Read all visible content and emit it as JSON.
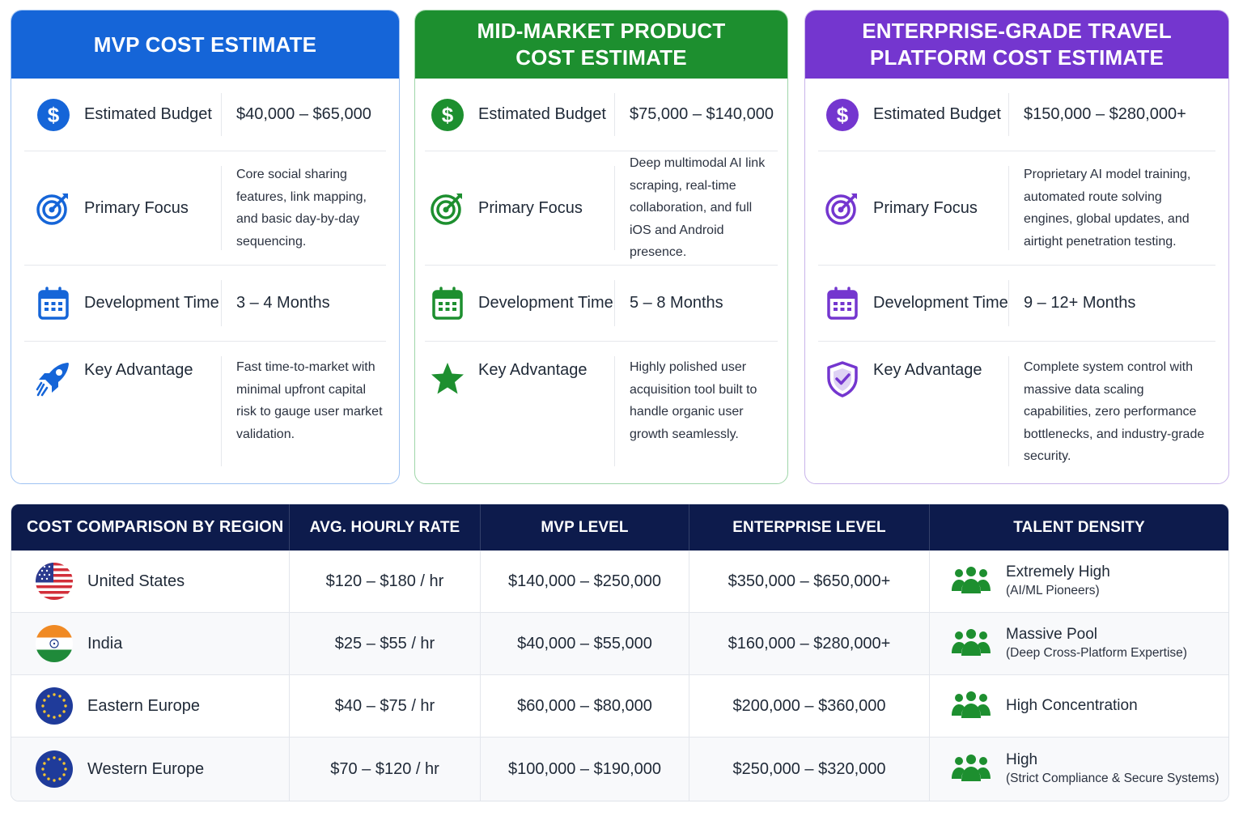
{
  "cards": [
    {
      "title": "MVP COST ESTIMATE",
      "accent": "#1565d8",
      "rows": {
        "budget": {
          "label": "Estimated Budget",
          "value": "$40,000 – $65,000"
        },
        "focus": {
          "label": "Primary Focus",
          "value": "Core social sharing features, link mapping, and basic day-by-day sequencing."
        },
        "time": {
          "label": "Development Time",
          "value": "3 – 4 Months"
        },
        "advantage": {
          "label": "Key Advantage",
          "value": "Fast time-to-market with minimal upfront capital risk to gauge user market validation."
        }
      },
      "icons": [
        "dollar-icon",
        "target-icon",
        "calendar-icon",
        "rocket-icon"
      ]
    },
    {
      "title": "MID-MARKET PRODUCT\nCOST ESTIMATE",
      "accent": "#1d8f2f",
      "rows": {
        "budget": {
          "label": "Estimated Budget",
          "value": "$75,000 – $140,000"
        },
        "focus": {
          "label": "Primary Focus",
          "value": "Deep multimodal AI link scraping, real-time collaboration, and full iOS and Android presence."
        },
        "time": {
          "label": "Development Time",
          "value": "5 – 8 Months"
        },
        "advantage": {
          "label": "Key Advantage",
          "value": "Highly polished user acquisition tool built to handle organic user growth seamlessly."
        }
      },
      "icons": [
        "dollar-icon",
        "target-icon",
        "calendar-icon",
        "star-icon"
      ]
    },
    {
      "title": "ENTERPRISE-GRADE TRAVEL\nPLATFORM COST ESTIMATE",
      "accent": "#7436cf",
      "rows": {
        "budget": {
          "label": "Estimated Budget",
          "value": "$150,000 – $280,000+"
        },
        "focus": {
          "label": "Primary Focus",
          "value": "Proprietary AI model training, automated route solving engines, global updates, and airtight penetration testing."
        },
        "time": {
          "label": "Development Time",
          "value": "9 – 12+ Months"
        },
        "advantage": {
          "label": "Key Advantage",
          "value": "Complete system control with massive data scaling capabilities, zero performance bottlenecks, and industry-grade security."
        }
      },
      "icons": [
        "dollar-icon",
        "target-icon",
        "calendar-icon",
        "shield-check-icon"
      ]
    }
  ],
  "table": {
    "headers": [
      "COST COMPARISON BY REGION",
      "AVG. HOURLY RATE",
      "MVP LEVEL",
      "ENTERPRISE LEVEL",
      "TALENT DENSITY"
    ],
    "header_bg": "#0d1b4c",
    "talent_color": "#1d8f2f",
    "rows": [
      {
        "region": "United States",
        "flag": "us-flag-icon",
        "rate": "$120 – $180 / hr",
        "mvp": "$140,000 – $250,000",
        "enterprise": "$350,000 – $650,000+",
        "talent": "Extremely High",
        "talent_note": "(AI/ML Pioneers)"
      },
      {
        "region": "India",
        "flag": "india-flag-icon",
        "rate": "$25 – $55 / hr",
        "mvp": "$40,000 – $55,000",
        "enterprise": "$160,000 – $280,000+",
        "talent": "Massive Pool",
        "talent_note": "(Deep Cross-Platform Expertise)"
      },
      {
        "region": "Eastern Europe",
        "flag": "eu-flag-icon",
        "rate": "$40 – $75 / hr",
        "mvp": "$60,000 – $80,000",
        "enterprise": "$200,000 – $360,000",
        "talent": "High Concentration",
        "talent_note": ""
      },
      {
        "region": "Western Europe",
        "flag": "eu-flag-icon",
        "rate": "$70 – $120 / hr",
        "mvp": "$100,000 – $190,000",
        "enterprise": "$250,000 – $320,000",
        "talent": "High",
        "talent_note": "(Strict Compliance & Secure Systems)"
      }
    ]
  }
}
